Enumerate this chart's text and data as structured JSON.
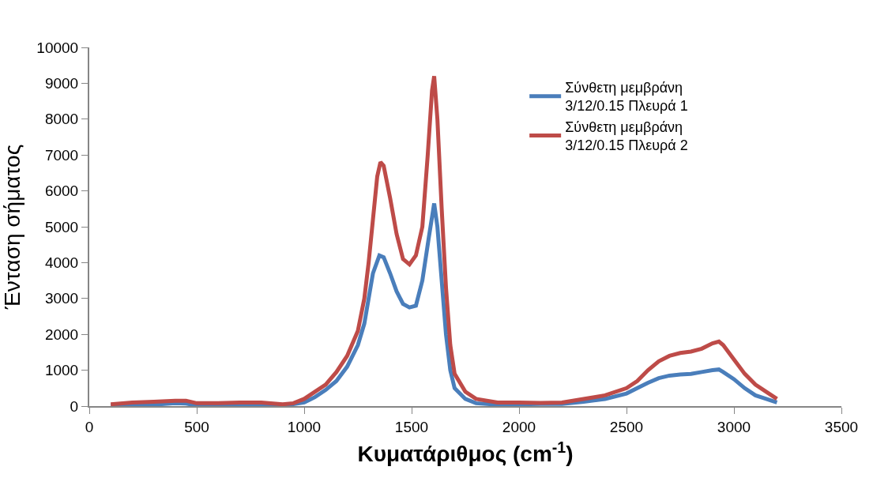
{
  "chart_data": {
    "type": "line",
    "xlabel": "Κυματάριθμος (cm$^{-1}$)",
    "ylabel": "Ένταση σήματος",
    "xlim": [
      0,
      3500
    ],
    "xticks": [
      0,
      500,
      1000,
      1500,
      2000,
      2500,
      3000,
      3500
    ],
    "ylim": [
      0,
      10000
    ],
    "yticks": [
      0,
      1000,
      2000,
      3000,
      4000,
      5000,
      6000,
      7000,
      8000,
      9000,
      10000
    ],
    "legend": "top right",
    "line_style": "solid",
    "marker": "none",
    "series": [
      {
        "name": "Σύνθετη μεμβράνη 3/12/0.15 Πλευρά 1",
        "color": "#4a7ebb",
        "x": [
          100,
          200,
          300,
          400,
          450,
          500,
          600,
          700,
          800,
          900,
          1000,
          1050,
          1100,
          1150,
          1200,
          1250,
          1280,
          1300,
          1320,
          1350,
          1370,
          1400,
          1430,
          1460,
          1490,
          1520,
          1550,
          1580,
          1605,
          1620,
          1640,
          1660,
          1680,
          1700,
          1750,
          1800,
          1900,
          2000,
          2100,
          2200,
          2300,
          2400,
          2500,
          2550,
          2600,
          2650,
          2700,
          2750,
          2800,
          2850,
          2900,
          2930,
          2950,
          3000,
          3050,
          3100,
          3150,
          3200
        ],
        "values": [
          20,
          30,
          40,
          80,
          70,
          20,
          20,
          40,
          30,
          10,
          100,
          250,
          450,
          700,
          1100,
          1700,
          2300,
          3000,
          3700,
          4200,
          4150,
          3700,
          3200,
          2850,
          2750,
          2800,
          3500,
          4700,
          5650,
          5000,
          3500,
          2000,
          1000,
          500,
          200,
          80,
          40,
          50,
          60,
          60,
          120,
          200,
          350,
          500,
          650,
          780,
          850,
          880,
          900,
          950,
          1000,
          1020,
          950,
          750,
          500,
          300,
          200,
          100
        ]
      },
      {
        "name": "Σύνθετη μεμβράνη 3/12/0.15 Πλευρά 2",
        "color": "#be4b48",
        "x": [
          100,
          200,
          300,
          400,
          450,
          500,
          600,
          700,
          800,
          900,
          950,
          1000,
          1050,
          1100,
          1150,
          1200,
          1250,
          1280,
          1300,
          1320,
          1340,
          1355,
          1370,
          1400,
          1430,
          1460,
          1490,
          1520,
          1550,
          1575,
          1595,
          1605,
          1620,
          1640,
          1660,
          1680,
          1700,
          1750,
          1800,
          1900,
          2000,
          2100,
          2200,
          2300,
          2400,
          2500,
          2550,
          2600,
          2650,
          2700,
          2750,
          2800,
          2850,
          2900,
          2930,
          2950,
          3000,
          3050,
          3100,
          3150,
          3200
        ],
        "values": [
          50,
          100,
          120,
          150,
          150,
          80,
          80,
          100,
          100,
          50,
          80,
          200,
          400,
          600,
          950,
          1400,
          2100,
          3000,
          4000,
          5200,
          6400,
          6800,
          6700,
          5800,
          4800,
          4100,
          3950,
          4200,
          5000,
          7000,
          8800,
          9200,
          8000,
          5500,
          3300,
          1700,
          900,
          400,
          200,
          100,
          100,
          90,
          100,
          200,
          300,
          500,
          700,
          1000,
          1250,
          1400,
          1480,
          1520,
          1600,
          1750,
          1800,
          1700,
          1300,
          900,
          600,
          400,
          200
        ]
      }
    ]
  }
}
